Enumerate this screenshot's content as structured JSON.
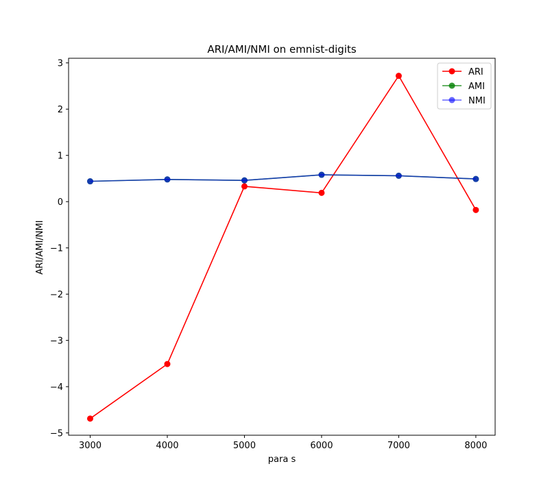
{
  "chart_data": {
    "type": "line",
    "title": "ARI/AMI/NMI on emnist-digits",
    "xlabel": "para s",
    "ylabel": "ARI/AMI/NMI",
    "x": [
      3000,
      4000,
      5000,
      6000,
      7000,
      8000
    ],
    "xlim": [
      2720,
      8250
    ],
    "ylim": [
      -5.05,
      3.1
    ],
    "xticks": [
      3000,
      4000,
      5000,
      6000,
      7000,
      8000
    ],
    "yticks": [
      -5,
      -4,
      -3,
      -2,
      -1,
      0,
      1,
      2,
      3
    ],
    "ytick_labels": [
      "−5",
      "−4",
      "−3",
      "−2",
      "−1",
      "0",
      "1",
      "2",
      "3"
    ],
    "grid": false,
    "legend_position": "top-right",
    "series": [
      {
        "name": "ARI",
        "color": "#ff0000",
        "alpha": 1.0,
        "values": [
          -4.69,
          -3.51,
          0.33,
          0.19,
          2.72,
          -0.18
        ]
      },
      {
        "name": "AMI",
        "color": "#008000",
        "alpha": 0.8,
        "values": [
          0.44,
          0.48,
          0.46,
          0.58,
          0.56,
          0.49
        ]
      },
      {
        "name": "NMI",
        "color": "#0000ff",
        "alpha": 0.6,
        "values": [
          0.44,
          0.48,
          0.46,
          0.58,
          0.56,
          0.49
        ]
      }
    ]
  }
}
